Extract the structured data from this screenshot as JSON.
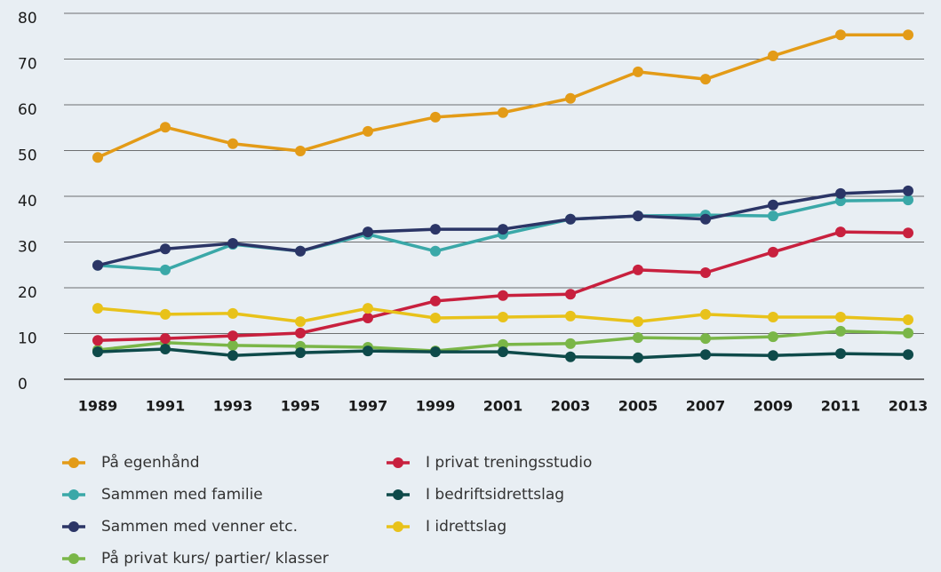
{
  "chart_data": {
    "type": "line",
    "categories": [
      "1989",
      "1991",
      "1993",
      "1995",
      "1997",
      "1999",
      "2001",
      "2003",
      "2005",
      "2007",
      "2009",
      "2011",
      "2013"
    ],
    "ylim": [
      0,
      80
    ],
    "yticks": [
      0,
      10,
      20,
      30,
      40,
      50,
      60,
      70,
      80
    ],
    "grid": true,
    "series": [
      {
        "name": "På egenhånd",
        "color": "#e39b17",
        "values": [
          48.5,
          55.1,
          51.5,
          49.9,
          54.2,
          57.3,
          58.3,
          61.4,
          67.2,
          65.6,
          70.7,
          75.3,
          75.3
        ]
      },
      {
        "name": "Sammen med familie",
        "color": "#3aa8a8",
        "values": [
          24.9,
          23.9,
          29.5,
          28,
          31.7,
          28,
          31.7,
          35,
          35.7,
          35.9,
          35.7,
          39,
          39.2
        ]
      },
      {
        "name": "Sammen med venner etc.",
        "color": "#2b3566",
        "values": [
          24.9,
          28.5,
          29.7,
          28,
          32.2,
          32.8,
          32.8,
          35,
          35.7,
          35,
          38.1,
          40.6,
          41.2
        ]
      },
      {
        "name": "På privat kurs/ partier/ klasser",
        "color": "#7ab648",
        "values": [
          6.4,
          8,
          7.4,
          7.2,
          7,
          6.2,
          7.6,
          7.8,
          9.1,
          8.9,
          9.3,
          10.5,
          10.1
        ]
      },
      {
        "name": "I privat treningsstudio",
        "color": "#c8203e",
        "values": [
          8.5,
          8.9,
          9.5,
          10.1,
          13.4,
          17.1,
          18.3,
          18.6,
          23.9,
          23.3,
          27.8,
          32.2,
          32
        ]
      },
      {
        "name": "I bedriftsidrettslag",
        "color": "#0e4a4a",
        "values": [
          6,
          6.6,
          5.2,
          5.8,
          6.2,
          6,
          6,
          4.9,
          4.7,
          5.4,
          5.2,
          5.6,
          5.4
        ]
      },
      {
        "name": "I idrettslag",
        "color": "#e8c21a",
        "values": [
          15.5,
          14.2,
          14.4,
          12.6,
          15.5,
          13.4,
          13.6,
          13.8,
          12.6,
          14.2,
          13.6,
          13.6,
          13
        ]
      }
    ]
  }
}
